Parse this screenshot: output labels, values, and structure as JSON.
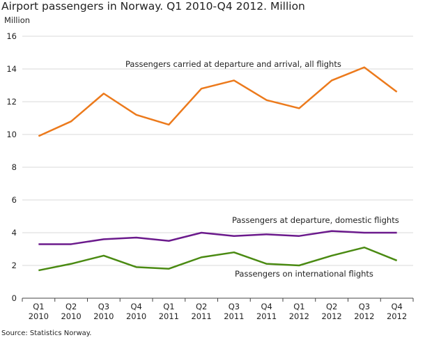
{
  "chart_data": {
    "type": "line",
    "title": "Airport passengers in Norway. Q1 2010-Q4 2012. Million",
    "ylabel": "Million",
    "xlabel": "",
    "source": "Source: Statistics Norway.",
    "ylim": [
      0,
      16
    ],
    "yticks": [
      0,
      2,
      4,
      6,
      8,
      10,
      12,
      14,
      16
    ],
    "grid": "horizontal",
    "categories": [
      [
        "Q1",
        "2010"
      ],
      [
        "Q2",
        "2010"
      ],
      [
        "Q3",
        "2010"
      ],
      [
        "Q4",
        "2010"
      ],
      [
        "Q1",
        "2011"
      ],
      [
        "Q2",
        "2011"
      ],
      [
        "Q3",
        "2011"
      ],
      [
        "Q4",
        "2011"
      ],
      [
        "Q1",
        "2012"
      ],
      [
        "Q2",
        "2012"
      ],
      [
        "Q3",
        "2012"
      ],
      [
        "Q4",
        "2012"
      ]
    ],
    "series": [
      {
        "name": "Passengers carried at departure and arrival, all flights",
        "color": "#ec7a1c",
        "values": [
          9.9,
          10.8,
          12.5,
          11.2,
          10.6,
          12.8,
          13.3,
          12.1,
          11.6,
          13.3,
          14.1,
          12.6
        ]
      },
      {
        "name": "Passengers at departure, domestic flights",
        "color": "#6b1a8c",
        "values": [
          3.3,
          3.3,
          3.6,
          3.7,
          3.5,
          4.0,
          3.8,
          3.9,
          3.8,
          4.1,
          4.0,
          4.0
        ]
      },
      {
        "name": "Passengers on international flights",
        "color": "#4a8a12",
        "values": [
          1.7,
          2.1,
          2.6,
          1.9,
          1.8,
          2.5,
          2.8,
          2.1,
          2.0,
          2.6,
          3.1,
          2.3
        ]
      }
    ]
  }
}
